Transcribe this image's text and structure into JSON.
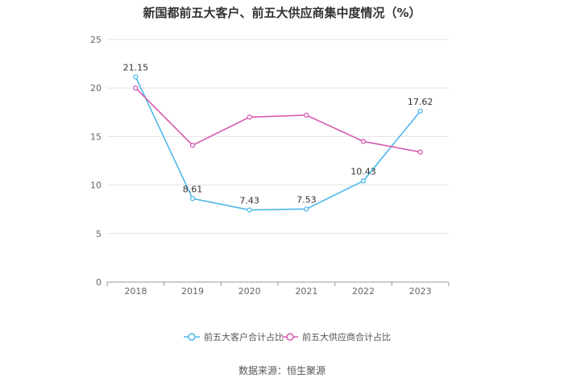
{
  "chart_data": {
    "type": "line",
    "title": "新国都前五大客户、前五大供应商集中度情况（%）",
    "categories": [
      "2018",
      "2019",
      "2020",
      "2021",
      "2022",
      "2023"
    ],
    "ylim": [
      0,
      25
    ],
    "yticks": [
      0,
      5,
      10,
      15,
      20,
      25
    ],
    "series": [
      {
        "name": "前五大客户合计占比",
        "values": [
          21.15,
          8.61,
          7.43,
          7.53,
          10.43,
          17.62
        ],
        "labels": [
          "21.15",
          "8.61",
          "7.43",
          "7.53",
          "10.43",
          "17.62"
        ],
        "color": "#4db8ec"
      },
      {
        "name": "前五大供应商合计占比",
        "values": [
          20.0,
          14.1,
          17.0,
          17.2,
          14.5,
          13.4
        ],
        "color": "#d65bb0"
      }
    ],
    "legend_position": "bottom",
    "source": "数据来源：恒生聚源"
  }
}
